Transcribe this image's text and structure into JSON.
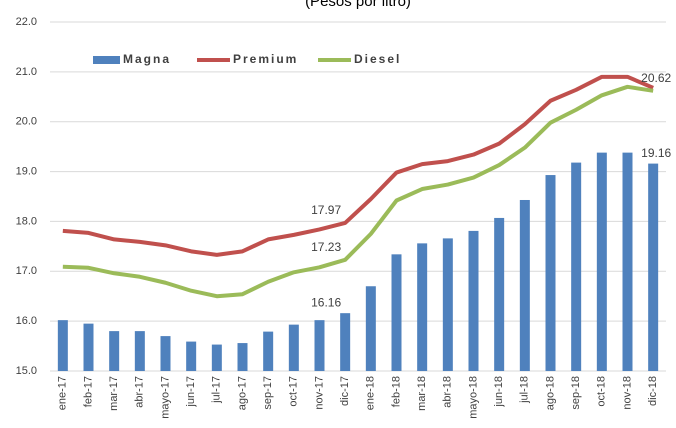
{
  "chart_data": {
    "type": "bar-line",
    "title": "(Pesos por litro)",
    "categories": [
      "ene-17",
      "feb-17",
      "mar-17",
      "abr-17",
      "mayo-17",
      "jun-17",
      "jul-17",
      "ago-17",
      "sep-17",
      "oct-17",
      "nov-17",
      "dic-17",
      "ene-18",
      "feb-18",
      "mar-18",
      "abr-18",
      "mayo-18",
      "jun-18",
      "jul-18",
      "ago-18",
      "sep-18",
      "oct-18",
      "nov-18",
      "dic-18"
    ],
    "series": [
      {
        "name": "Magna",
        "type": "bar",
        "color": "#4f81bd",
        "values": [
          16.02,
          15.95,
          15.8,
          15.8,
          15.7,
          15.59,
          15.53,
          15.56,
          15.79,
          15.93,
          16.02,
          16.16,
          16.7,
          17.34,
          17.56,
          17.66,
          17.81,
          18.07,
          18.43,
          18.93,
          19.18,
          19.38,
          19.38,
          19.16
        ],
        "value_labels": [
          null,
          null,
          null,
          null,
          null,
          null,
          null,
          null,
          null,
          null,
          null,
          "16.16",
          null,
          null,
          null,
          null,
          null,
          null,
          null,
          null,
          null,
          null,
          null,
          "19.16"
        ]
      },
      {
        "name": "Premium",
        "type": "line",
        "color": "#c0504d",
        "values": [
          17.81,
          17.77,
          17.64,
          17.59,
          17.52,
          17.4,
          17.33,
          17.4,
          17.64,
          17.73,
          17.84,
          17.97,
          18.45,
          18.98,
          19.15,
          19.21,
          19.34,
          19.56,
          19.95,
          20.42,
          20.64,
          20.9,
          20.9,
          20.68
        ],
        "value_labels": [
          null,
          null,
          null,
          null,
          null,
          null,
          null,
          null,
          null,
          null,
          null,
          "17.97",
          null,
          null,
          null,
          null,
          null,
          null,
          null,
          null,
          null,
          null,
          null,
          null
        ]
      },
      {
        "name": "Diesel",
        "type": "line",
        "color": "#9bbb59",
        "values": [
          17.09,
          17.07,
          16.96,
          16.89,
          16.77,
          16.61,
          16.5,
          16.54,
          16.79,
          16.98,
          17.08,
          17.23,
          17.75,
          18.42,
          18.65,
          18.74,
          18.88,
          19.13,
          19.48,
          19.98,
          20.24,
          20.53,
          20.7,
          20.62
        ],
        "value_labels": [
          null,
          null,
          null,
          null,
          null,
          null,
          null,
          null,
          null,
          null,
          null,
          "17.23",
          null,
          null,
          null,
          null,
          null,
          null,
          null,
          null,
          null,
          null,
          null,
          "20.62"
        ]
      }
    ],
    "ylim": [
      15,
      22
    ],
    "yticks": [
      {
        "value": 15,
        "label": "15.0"
      },
      {
        "value": 16,
        "label": "16.0"
      },
      {
        "value": 17,
        "label": "17.0"
      },
      {
        "value": 18,
        "label": "18.0"
      },
      {
        "value": 19,
        "label": "19.0"
      },
      {
        "value": 20,
        "label": "20.0"
      },
      {
        "value": 21,
        "label": "21.0"
      },
      {
        "value": 22,
        "label": "22.0"
      }
    ],
    "grid": true,
    "legend": "top-left"
  }
}
